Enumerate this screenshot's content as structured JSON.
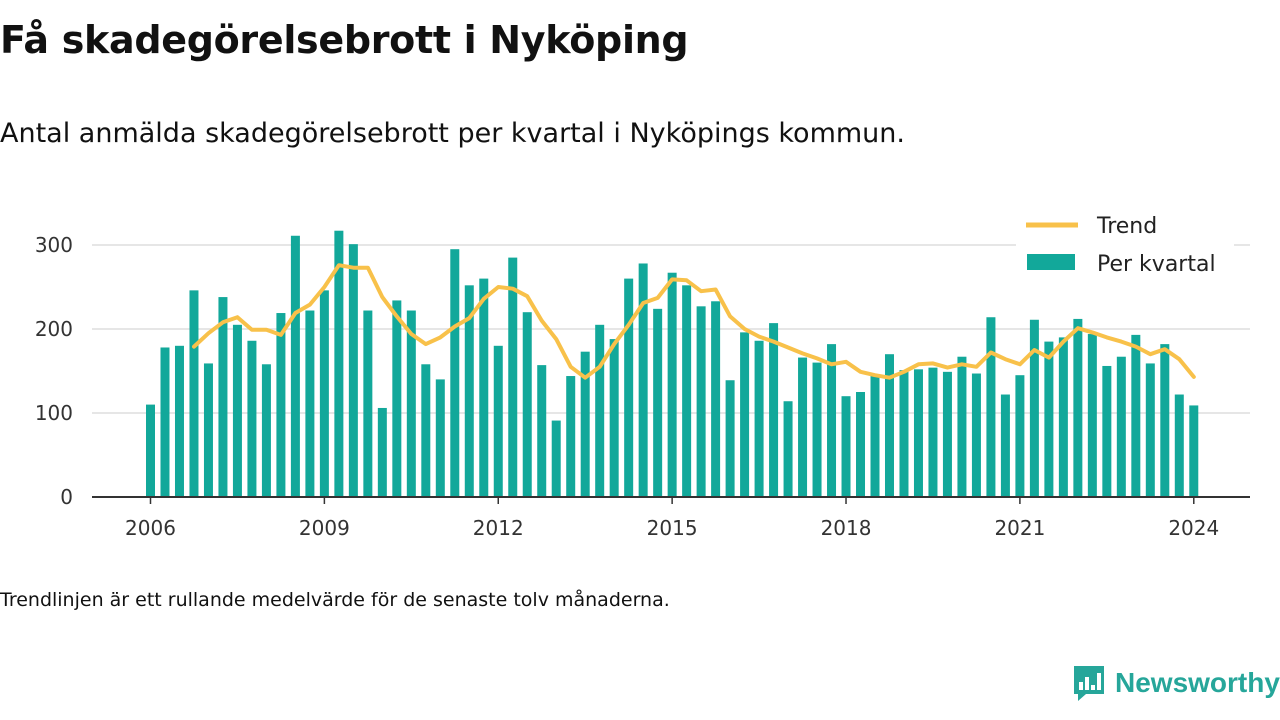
{
  "title": "Få skadegörelsebrott i Nyköping",
  "subtitle": "Antal anmälda skadegörelsebrott per kvartal i Nyköpings kommun.",
  "footnote": "Trendlinjen är ett rullande medelvärde för de senaste tolv månaderna.",
  "brand": "Newsworthy",
  "colors": {
    "bar": "#12a89a",
    "trend": "#f8c14a",
    "grid": "#dddddd",
    "axis": "#333333",
    "brand": "#26a69a"
  },
  "chart_data": {
    "type": "bar",
    "title": "",
    "xlabel": "",
    "ylabel": "",
    "ylim": [
      0,
      330
    ],
    "yticks": [
      0,
      100,
      200,
      300
    ],
    "xticks": [
      "2006",
      "2009",
      "2012",
      "2015",
      "2018",
      "2021",
      "2024"
    ],
    "grid": true,
    "legend_position": "top-right",
    "legend": [
      "Trend",
      "Per kvartal"
    ],
    "categories": [
      "2006 Q1",
      "2006 Q2",
      "2006 Q3",
      "2006 Q4",
      "2007 Q1",
      "2007 Q2",
      "2007 Q3",
      "2007 Q4",
      "2008 Q1",
      "2008 Q2",
      "2008 Q3",
      "2008 Q4",
      "2009 Q1",
      "2009 Q2",
      "2009 Q3",
      "2009 Q4",
      "2010 Q1",
      "2010 Q2",
      "2010 Q3",
      "2010 Q4",
      "2011 Q1",
      "2011 Q2",
      "2011 Q3",
      "2011 Q4",
      "2012 Q1",
      "2012 Q2",
      "2012 Q3",
      "2012 Q4",
      "2013 Q1",
      "2013 Q2",
      "2013 Q3",
      "2013 Q4",
      "2014 Q1",
      "2014 Q2",
      "2014 Q3",
      "2014 Q4",
      "2015 Q1",
      "2015 Q2",
      "2015 Q3",
      "2015 Q4",
      "2016 Q1",
      "2016 Q2",
      "2016 Q3",
      "2016 Q4",
      "2017 Q1",
      "2017 Q2",
      "2017 Q3",
      "2017 Q4",
      "2018 Q1",
      "2018 Q2",
      "2018 Q3",
      "2018 Q4",
      "2019 Q1",
      "2019 Q2",
      "2019 Q3",
      "2019 Q4",
      "2020 Q1",
      "2020 Q2",
      "2020 Q3",
      "2020 Q4",
      "2021 Q1",
      "2021 Q2",
      "2021 Q3",
      "2021 Q4",
      "2022 Q1",
      "2022 Q2",
      "2022 Q3",
      "2022 Q4",
      "2023 Q1",
      "2023 Q2",
      "2023 Q3",
      "2023 Q4",
      "2024 Q1"
    ],
    "series": [
      {
        "name": "Per kvartal",
        "type": "bar",
        "values": [
          110,
          178,
          180,
          246,
          159,
          238,
          205,
          186,
          158,
          219,
          311,
          222,
          246,
          317,
          301,
          222,
          106,
          234,
          222,
          158,
          140,
          295,
          252,
          260,
          180,
          285,
          220,
          157,
          91,
          144,
          173,
          205,
          188,
          260,
          278,
          224,
          267,
          252,
          227,
          233,
          139,
          196,
          186,
          207,
          114,
          166,
          160,
          182,
          120,
          125,
          144,
          170,
          151,
          152,
          154,
          149,
          167,
          147,
          214,
          122,
          145,
          211,
          185,
          190,
          212,
          194,
          156,
          167,
          193,
          159,
          182,
          122,
          109
        ]
      },
      {
        "name": "Trend",
        "type": "line",
        "values": [
          null,
          null,
          null,
          179,
          195,
          208,
          214,
          199,
          199,
          193,
          219,
          229,
          250,
          276,
          273,
          273,
          238,
          215,
          194,
          182,
          190,
          203,
          213,
          236,
          250,
          248,
          239,
          210,
          188,
          155,
          142,
          155,
          182,
          205,
          231,
          237,
          259,
          258,
          245,
          247,
          215,
          200,
          191,
          185,
          178,
          171,
          165,
          158,
          161,
          149,
          145,
          142,
          149,
          158,
          159,
          154,
          158,
          155,
          172,
          164,
          158,
          175,
          166,
          185,
          201,
          196,
          190,
          185,
          179,
          170,
          176,
          164,
          143
        ]
      }
    ]
  }
}
